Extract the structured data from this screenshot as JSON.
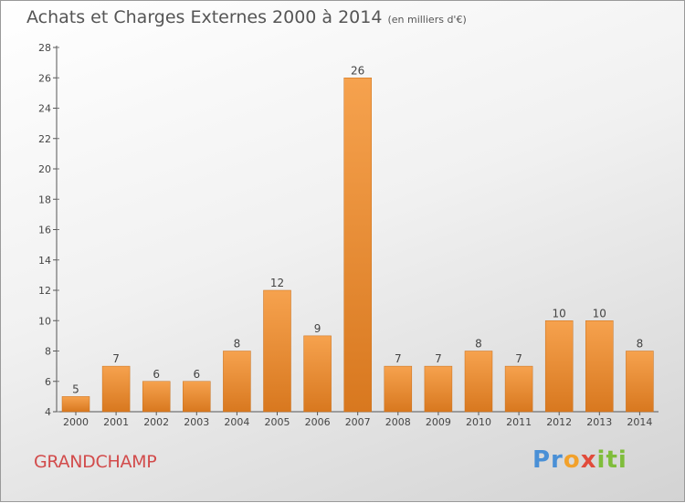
{
  "chart_data": {
    "type": "bar",
    "title": "Achats et Charges Externes 2000 à 2014",
    "subtitle": "(en milliers d'€)",
    "categories": [
      "2000",
      "2001",
      "2002",
      "2003",
      "2004",
      "2005",
      "2006",
      "2007",
      "2008",
      "2009",
      "2010",
      "2011",
      "2012",
      "2013",
      "2014"
    ],
    "values": [
      5,
      7,
      6,
      6,
      8,
      12,
      9,
      26,
      7,
      7,
      8,
      7,
      10,
      10,
      8
    ],
    "ylim": [
      4,
      28
    ],
    "yticks": [
      4,
      6,
      8,
      10,
      12,
      14,
      16,
      18,
      20,
      22,
      24,
      26,
      28
    ],
    "grid": false,
    "colors": {
      "bar_light": "#f6a24e",
      "bar_dark": "#d8781f"
    }
  },
  "commune": "GRANDCHAMP",
  "logo": {
    "part1": "Pr",
    "part2": "o",
    "part3": "x",
    "part4": "iti"
  }
}
